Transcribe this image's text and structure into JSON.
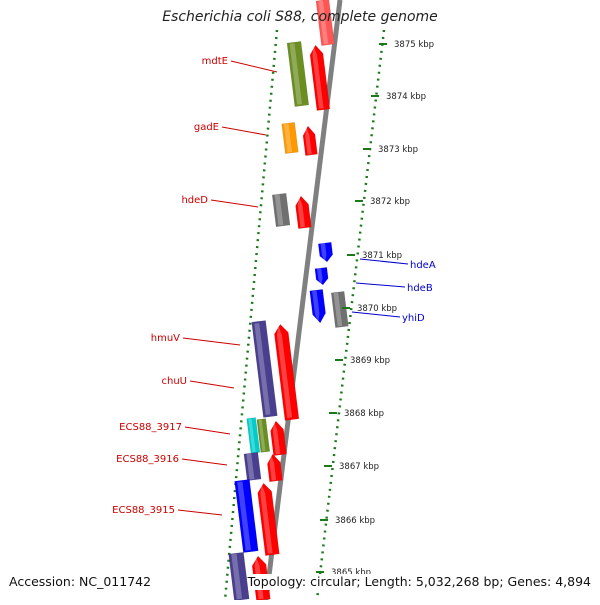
{
  "title": "Escherichia coli S88, complete genome",
  "footer": {
    "accession": "Accession: NC_011742",
    "topology": "Topology: circular; Length: 5,032,268 bp; Genes: 4,894"
  },
  "ticks": [
    "3875 kbp",
    "3874 kbp",
    "3873 kbp",
    "3872 kbp",
    "3871 kbp",
    "3870 kbp",
    "3869 kbp",
    "3868 kbp",
    "3867 kbp",
    "3866 kbp",
    "3865 kbp"
  ],
  "genes_left": [
    "mdtE",
    "gadE",
    "hdeD",
    "hmuV",
    "chuU",
    "ECS88_3917",
    "ECS88_3916",
    "ECS88_3915"
  ],
  "genes_right": [
    "hdeA",
    "hdeB",
    "yhiD"
  ],
  "colors": {
    "red": "#ff0000",
    "olive": "#6b8e23",
    "orange": "#ff9900",
    "gray": "#707070",
    "blue": "#0000ff",
    "indigo": "#4a3f8f",
    "cyan": "#00cccc",
    "label_red": "#cc0000",
    "label_blue": "#0000cc",
    "ring_green": "#1a7a1a"
  }
}
